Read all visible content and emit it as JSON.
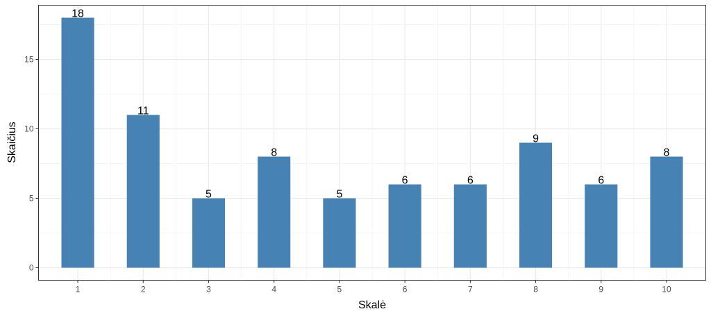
{
  "chart_data": {
    "type": "bar",
    "categories": [
      "1",
      "2",
      "3",
      "4",
      "5",
      "6",
      "7",
      "8",
      "9",
      "10"
    ],
    "values": [
      18,
      11,
      5,
      8,
      5,
      6,
      6,
      9,
      6,
      8
    ],
    "data_labels": [
      "18",
      "11",
      "5",
      "8",
      "5",
      "6",
      "6",
      "9",
      "6",
      "8"
    ],
    "title": "",
    "xlabel": "Skalė",
    "ylabel": "Skaičius",
    "ylim": [
      -0.9,
      18.9
    ],
    "yticks": [
      0,
      5,
      10,
      15
    ],
    "ytick_labels": [
      "0",
      "5",
      "10",
      "15"
    ],
    "grid": true,
    "legend": "none",
    "colors": {
      "bar": "#4682b4",
      "grid_major": "#ebebeb",
      "grid_minor": "#f5f5f5",
      "panel_border": "#333333",
      "tick_text": "#4d4d4d"
    }
  }
}
